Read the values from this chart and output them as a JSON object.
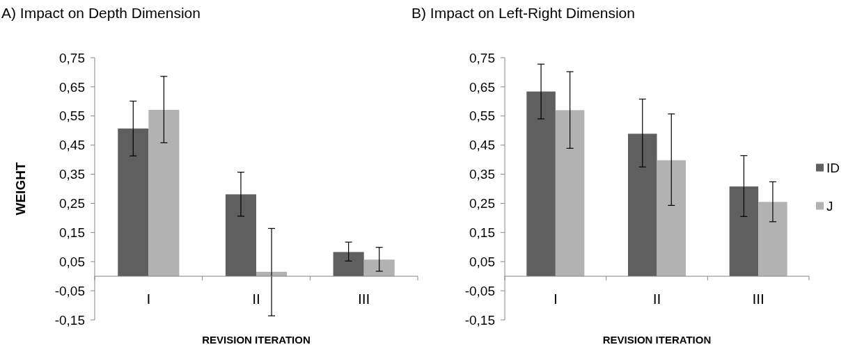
{
  "chart_data": [
    {
      "type": "bar",
      "title": "A) Impact on Depth Dimension",
      "xlabel": "REVISION ITERATION",
      "ylabel": "WEIGHT",
      "categories": [
        "I",
        "II",
        "III"
      ],
      "series": [
        {
          "color": "#5f5f5f",
          "values": [
            0.507,
            0.281,
            0.083
          ],
          "errors": [
            [
              0.413,
              0.601
            ],
            [
              0.206,
              0.357
            ],
            [
              0.052,
              0.117
            ]
          ]
        },
        {
          "color": "#b2b2b2",
          "values": [
            0.571,
            0.015,
            0.057
          ],
          "errors": [
            [
              0.458,
              0.686
            ],
            [
              -0.136,
              0.164
            ],
            [
              0.017,
              0.099
            ]
          ]
        }
      ],
      "ylim": [
        -0.15,
        0.75
      ],
      "yticks": [
        {
          "value": -0.15,
          "label": "-0,15"
        },
        {
          "value": -0.05,
          "label": "-0,05"
        },
        {
          "value": 0.05,
          "label": "0,05"
        },
        {
          "value": 0.15,
          "label": "0,15"
        },
        {
          "value": 0.25,
          "label": "0,25"
        },
        {
          "value": 0.35,
          "label": "0,35"
        },
        {
          "value": 0.45,
          "label": "0,45"
        },
        {
          "value": 0.55,
          "label": "0,55"
        },
        {
          "value": 0.65,
          "label": "0,65"
        },
        {
          "value": 0.75,
          "label": "0,75"
        }
      ],
      "grid": false,
      "legend": false
    },
    {
      "type": "bar",
      "title": "B) Impact on Left-Right Dimension",
      "xlabel": "REVISION ITERATION",
      "categories": [
        "I",
        "II",
        "III"
      ],
      "series": [
        {
          "name": "ID",
          "color": "#5f5f5f",
          "values": [
            0.634,
            0.489,
            0.308
          ],
          "errors": [
            [
              0.54,
              0.728
            ],
            [
              0.375,
              0.608
            ],
            [
              0.205,
              0.414
            ]
          ]
        },
        {
          "name": "J",
          "color": "#b2b2b2",
          "values": [
            0.57,
            0.398,
            0.255
          ],
          "errors": [
            [
              0.439,
              0.702
            ],
            [
              0.243,
              0.557
            ],
            [
              0.187,
              0.324
            ]
          ]
        }
      ],
      "ylim": [
        -0.15,
        0.75
      ],
      "yticks": [
        {
          "value": -0.15,
          "label": "-0,15"
        },
        {
          "value": -0.05,
          "label": "-0,05"
        },
        {
          "value": 0.05,
          "label": "0,05"
        },
        {
          "value": 0.15,
          "label": "0,15"
        },
        {
          "value": 0.25,
          "label": "0,25"
        },
        {
          "value": 0.35,
          "label": "0,35"
        },
        {
          "value": 0.45,
          "label": "0,45"
        },
        {
          "value": 0.55,
          "label": "0,55"
        },
        {
          "value": 0.65,
          "label": "0,65"
        },
        {
          "value": 0.75,
          "label": "0,75"
        }
      ],
      "grid": false,
      "legend": "right"
    }
  ]
}
